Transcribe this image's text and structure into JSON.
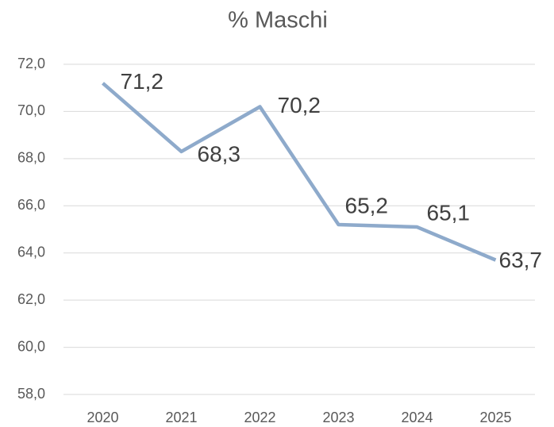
{
  "chart_data": {
    "type": "line",
    "title": "% Maschi",
    "categories": [
      "2020",
      "2021",
      "2022",
      "2023",
      "2024",
      "2025"
    ],
    "series": [
      {
        "name": "% Maschi",
        "color": "#8eaacb",
        "values": [
          71.2,
          68.3,
          70.2,
          65.2,
          65.1,
          63.7
        ],
        "value_labels": [
          "71,2",
          "68,3",
          "70,2",
          "65,2",
          "65,1",
          "63,7"
        ]
      }
    ],
    "ylim": [
      58,
      72
    ],
    "yticks": [
      {
        "value": 58,
        "label": "58,0"
      },
      {
        "value": 60,
        "label": "60,0"
      },
      {
        "value": 62,
        "label": "62,0"
      },
      {
        "value": 64,
        "label": "64,0"
      },
      {
        "value": 66,
        "label": "66,0"
      },
      {
        "value": 68,
        "label": "68,0"
      },
      {
        "value": 70,
        "label": "70,0"
      },
      {
        "value": 72,
        "label": "72,0"
      }
    ],
    "grid": true
  }
}
